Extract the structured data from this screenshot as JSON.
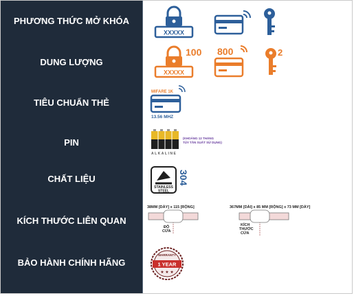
{
  "rows": [
    {
      "label": "PHƯƠNG THỨC MỞ KHÓA"
    },
    {
      "label": "DUNG LƯỢNG"
    },
    {
      "label": "TIÊU CHUẨN THẺ"
    },
    {
      "label": "PIN"
    },
    {
      "label": "CHẤT LIỆU"
    },
    {
      "label": "KÍCH THƯỚC LIÊN QUAN"
    },
    {
      "label": "BẢO HÀNH CHÍNH HÃNG"
    }
  ],
  "unlock": {
    "pin_text": "XXXXX"
  },
  "capacity": {
    "pin_count": "100",
    "card_count": "800",
    "key_count": "2",
    "pin_text": "XXXXX"
  },
  "card_standard": {
    "chip": "MIFARE 1K",
    "freq": "13.56 MHZ"
  },
  "battery": {
    "note1": "(KHOẢNG 12 THÁNG",
    "note2": "TÙY TẦN SUẤT SỬ DỤNG)",
    "brand": "ALKALINE"
  },
  "material": {
    "grade": "304",
    "line1": "STAINLESS",
    "line2": "STEEL"
  },
  "dimensions": {
    "door": {
      "spec": "38MM [DÀY] x 115 [RỘNG]",
      "label1": "ĐỘ",
      "label2": "CỬA"
    },
    "product": {
      "spec": "367MM [DÀI] x 85 MM [RỘNG] x 73 MM [DÀY]",
      "label1": "KÍCH",
      "label2": "THƯỚC",
      "label3": "CỬA"
    }
  },
  "warranty": {
    "top": "WARRANTY",
    "badge": "1 YEAR"
  },
  "colors": {
    "navy": "#1f2b3a",
    "blue": "#2d5f9a",
    "orange": "#ea7d2b",
    "red": "#c9302c"
  }
}
